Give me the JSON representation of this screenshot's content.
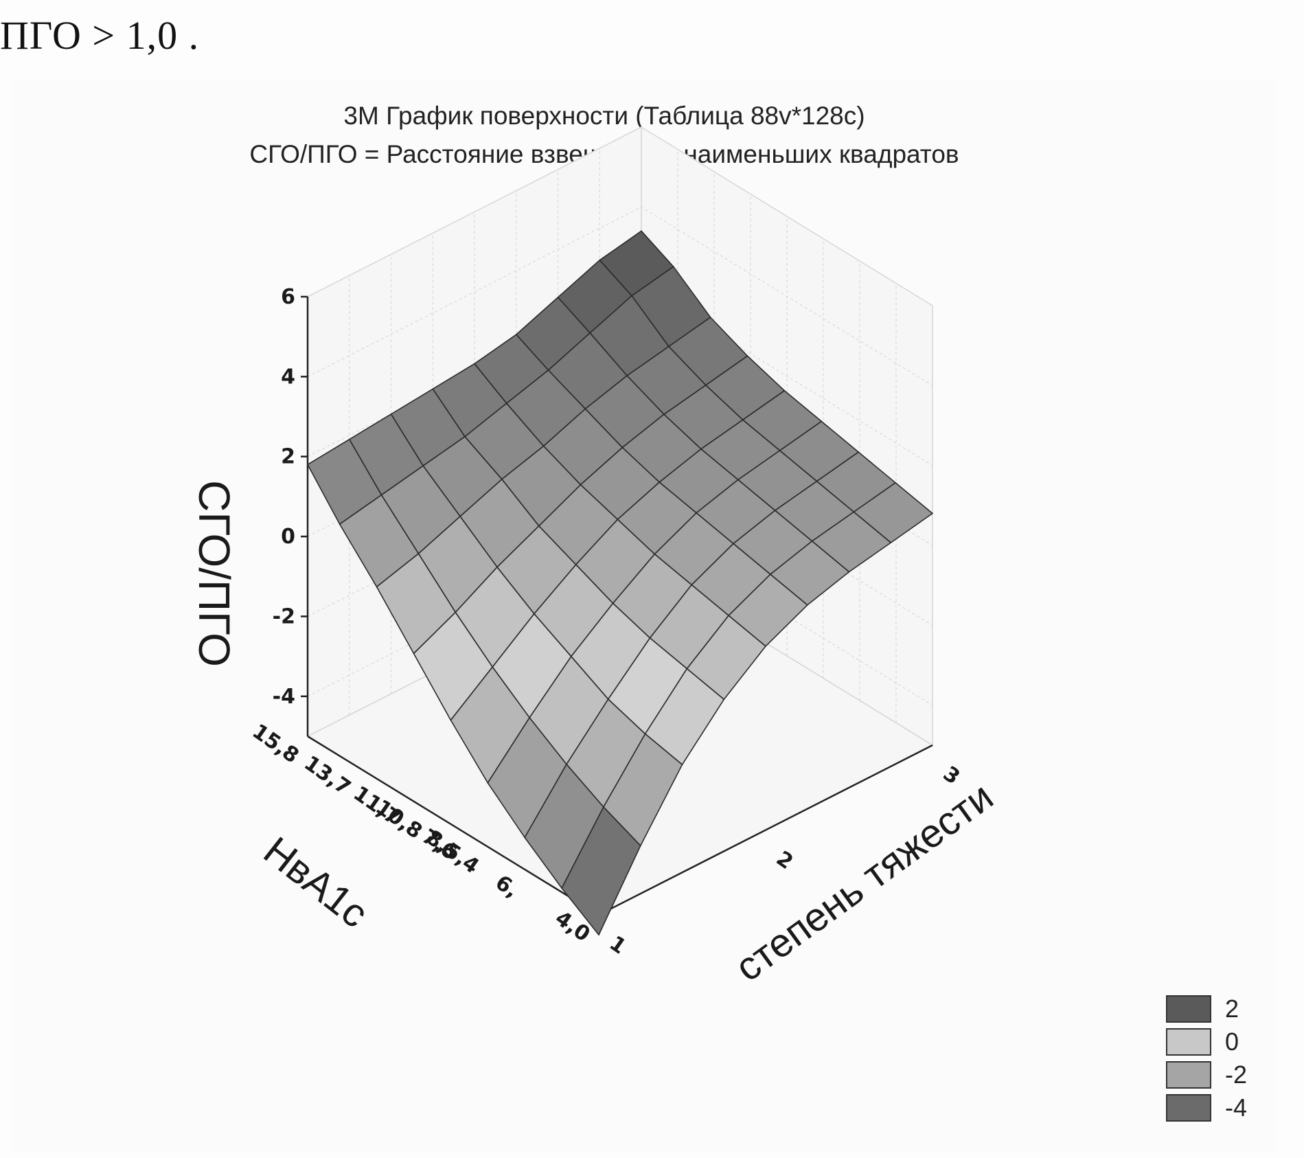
{
  "page_text": "ПГО > 1,0 .",
  "chart_data": {
    "type": "surface3d",
    "title": "3М График поверхности (Таблица 88v*128c)",
    "subtitle": "СГО/ПГО = Расстояние взвешенных наименьших квадратов",
    "zlabel": "СГО/ПГО",
    "xlabel": "степень тяжести",
    "ylabel": "НвА1с",
    "x_ticks": [
      "1",
      "2",
      "3"
    ],
    "y_ticks": [
      "15,8",
      "13,7",
      "11,7",
      "10,8",
      "7,6",
      "8,5,4",
      "6,",
      "4,0"
    ],
    "z_ticks": [
      "6",
      "4",
      "2",
      "0",
      "-2",
      "-4"
    ],
    "xlim": [
      1,
      3
    ],
    "ylim": [
      4.0,
      15.8
    ],
    "zlim": [
      -5,
      6
    ],
    "surface": {
      "x": [
        1,
        1.25,
        1.5,
        1.75,
        2,
        2.25,
        2.5,
        2.75,
        3
      ],
      "y": [
        4.0,
        5.5,
        7.0,
        8.5,
        10.0,
        11.5,
        13.0,
        14.5,
        15.8
      ],
      "z": [
        [
          -5.5,
          -3.8,
          -2.3,
          -1.2,
          -0.4,
          0.1,
          0.4,
          0.6,
          0.8
        ],
        [
          -4.9,
          -3.4,
          -2.1,
          -1.0,
          -0.2,
          0.3,
          0.6,
          0.8,
          1.0
        ],
        [
          -4.2,
          -2.9,
          -1.8,
          -0.8,
          0.0,
          0.5,
          0.8,
          1.0,
          1.2
        ],
        [
          -3.4,
          -2.3,
          -1.3,
          -0.5,
          0.2,
          0.7,
          1.0,
          1.2,
          1.4
        ],
        [
          -2.4,
          -1.6,
          -0.8,
          -0.1,
          0.5,
          0.9,
          1.2,
          1.4,
          1.6
        ],
        [
          -1.3,
          -0.8,
          -0.2,
          0.3,
          0.8,
          1.2,
          1.5,
          1.7,
          1.9
        ],
        [
          -0.2,
          0.1,
          0.5,
          0.9,
          1.2,
          1.6,
          1.9,
          2.1,
          2.3
        ],
        [
          0.8,
          1.0,
          1.2,
          1.4,
          1.7,
          2.0,
          2.4,
          2.8,
          3.0
        ],
        [
          1.8,
          1.9,
          2.0,
          2.1,
          2.2,
          2.4,
          2.8,
          3.2,
          3.4
        ]
      ]
    },
    "legend": [
      {
        "label": "2",
        "color": "#5a5a5a"
      },
      {
        "label": "0",
        "color": "#c8c8c8"
      },
      {
        "label": "-2",
        "color": "#a5a5a5"
      },
      {
        "label": "-4",
        "color": "#6b6b6b"
      }
    ]
  }
}
